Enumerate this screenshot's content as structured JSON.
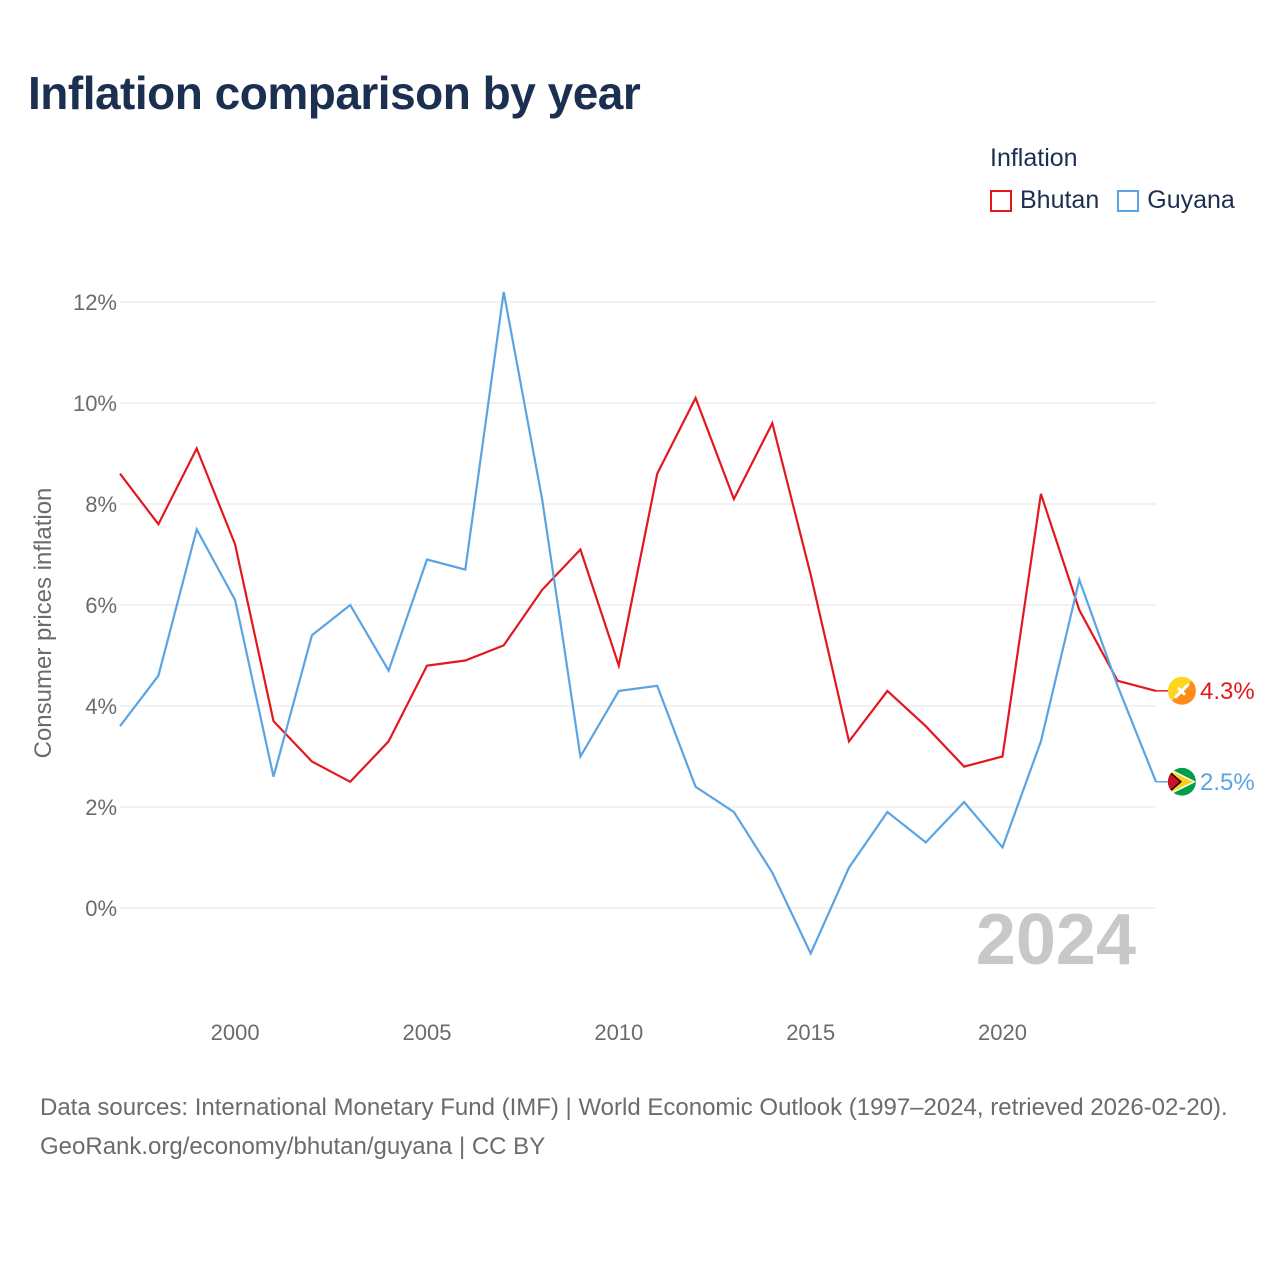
{
  "chart_data": {
    "type": "line",
    "title": "Inflation comparison by year",
    "legend_title": "Inflation",
    "legend_position": "top-right",
    "ylabel": "Consumer prices inflation",
    "xlabel": "",
    "ylim": [
      -2,
      12.5
    ],
    "xlim": [
      1997,
      2024
    ],
    "y_ticks": [
      0,
      2,
      4,
      6,
      8,
      10,
      12
    ],
    "y_tick_labels": [
      "0%",
      "2%",
      "4%",
      "6%",
      "8%",
      "10%",
      "12%"
    ],
    "x_ticks": [
      2000,
      2005,
      2010,
      2015,
      2020
    ],
    "x_tick_labels": [
      "2000",
      "2005",
      "2010",
      "2015",
      "2020"
    ],
    "grid": true,
    "year_label": "2024",
    "x": [
      1997,
      1998,
      1999,
      2000,
      2001,
      2002,
      2003,
      2004,
      2005,
      2006,
      2007,
      2008,
      2009,
      2010,
      2011,
      2012,
      2013,
      2014,
      2015,
      2016,
      2017,
      2018,
      2019,
      2020,
      2021,
      2022,
      2023,
      2024
    ],
    "series": [
      {
        "name": "Bhutan",
        "color": "#e3181f",
        "end_label": "4.3%",
        "icon": "bhutan-flag-icon",
        "values": [
          8.6,
          7.6,
          9.1,
          7.2,
          3.7,
          2.9,
          2.5,
          3.3,
          4.8,
          4.9,
          5.2,
          6.3,
          7.1,
          4.8,
          8.6,
          10.1,
          8.1,
          9.6,
          6.6,
          3.3,
          4.3,
          3.6,
          2.8,
          3.0,
          8.2,
          5.9,
          4.5,
          4.3
        ]
      },
      {
        "name": "Guyana",
        "color": "#5aa4e3",
        "end_label": "2.5%",
        "icon": "guyana-flag-icon",
        "values": [
          3.6,
          4.6,
          7.5,
          6.1,
          2.6,
          5.4,
          6.0,
          4.7,
          6.9,
          6.7,
          12.2,
          8.1,
          3.0,
          4.3,
          4.4,
          2.4,
          1.9,
          0.7,
          -0.9,
          0.8,
          1.9,
          1.3,
          2.1,
          1.2,
          3.3,
          6.5,
          4.4,
          2.5
        ]
      }
    ]
  },
  "footer": {
    "sources": "Data sources: International Monetary Fund (IMF) | World Economic Outlook (1997–2024, retrieved 2026-02-20).",
    "link": "GeoRank.org/economy/bhutan/guyana | CC BY"
  }
}
